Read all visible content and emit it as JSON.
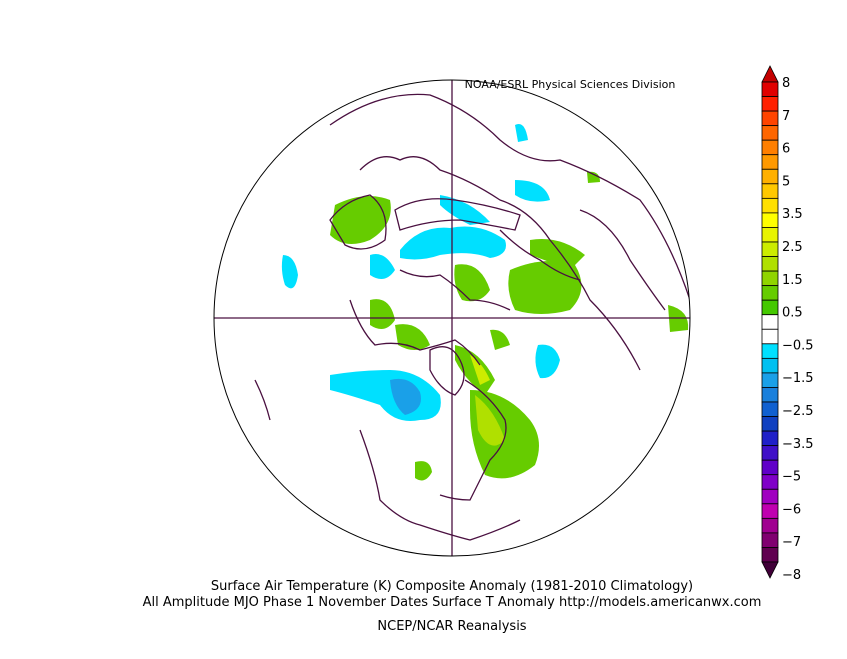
{
  "header": {
    "source": "NOAA/ESRL Physical Sciences Division"
  },
  "caption": {
    "line1": "Surface Air Temperature (K) Composite Anomaly (1981-2010 Climatology)",
    "line2": "All Amplitude MJO Phase 1 November Dates Surface T Anomaly http://models.americanwx.com",
    "line3": "NCEP/NCAR Reanalysis"
  },
  "colorbar": {
    "labels": [
      "8",
      "7",
      "6",
      "5",
      "3.5",
      "2.5",
      "1.5",
      "0.5",
      "−0.5",
      "−1.5",
      "−2.5",
      "−3.5",
      "−5",
      "−6",
      "−7",
      "−8"
    ],
    "colors": [
      "#c40000",
      "#e00000",
      "#ff2000",
      "#ff4400",
      "#ff6600",
      "#ff7f00",
      "#ff9900",
      "#ffb000",
      "#ffc800",
      "#ffe000",
      "#ffff00",
      "#e8f400",
      "#ccec00",
      "#b0e000",
      "#90d400",
      "#66cc00",
      "#44c800",
      "#ffffff",
      "#ffffff",
      "#00e0ff",
      "#00c0f0",
      "#1aa0e8",
      "#1a80dc",
      "#1060d0",
      "#1040c0",
      "#2020c8",
      "#4010c8",
      "#6000c8",
      "#8000c8",
      "#a000c0",
      "#c000b0",
      "#a00090",
      "#800070",
      "#600050",
      "#400038"
    ]
  }
}
